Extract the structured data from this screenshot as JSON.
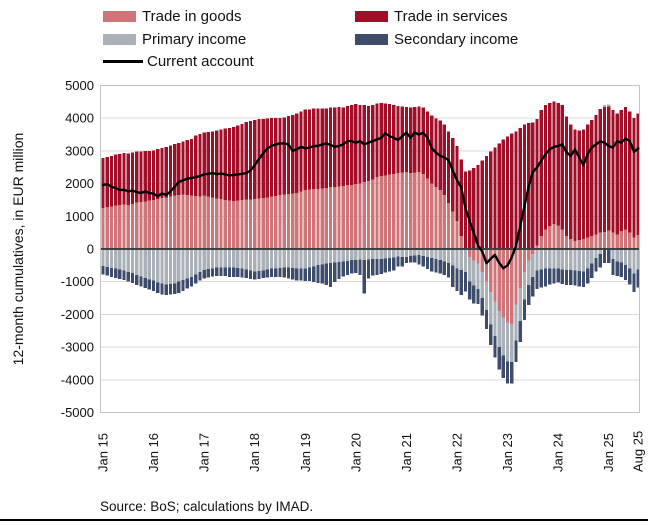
{
  "legend": {
    "items": [
      {
        "label": "Trade in goods",
        "color": "#cf757a",
        "swatch": "box"
      },
      {
        "label": "Trade in services",
        "color": "#a00e28",
        "swatch": "box"
      },
      {
        "label": "Primary income",
        "color": "#aab0b8",
        "swatch": "box"
      },
      {
        "label": "Secondary income",
        "color": "#3e4c6b",
        "swatch": "box"
      },
      {
        "label": "Current account",
        "color": "#000000",
        "swatch": "line"
      }
    ]
  },
  "y_axis": {
    "title": "12-month cumulatives, in EUR million",
    "tick_values": [
      5000,
      4000,
      3000,
      2000,
      1000,
      0,
      -1000,
      -2000,
      -3000,
      -4000,
      -5000
    ]
  },
  "x_axis": {
    "ticks": [
      {
        "label": "Jan 15",
        "month": 0
      },
      {
        "label": "Jan 16",
        "month": 12
      },
      {
        "label": "Jan 17",
        "month": 24
      },
      {
        "label": "Jan 18",
        "month": 36
      },
      {
        "label": "Jan 19",
        "month": 48
      },
      {
        "label": "Jan 20",
        "month": 60
      },
      {
        "label": "Jan 21",
        "month": 72
      },
      {
        "label": "Jan 22",
        "month": 84
      },
      {
        "label": "Jan 23",
        "month": 96
      },
      {
        "label": "Jan 24",
        "month": 108
      },
      {
        "label": "Jan 25",
        "month": 120
      },
      {
        "label": "Aug 25",
        "month": 127
      }
    ]
  },
  "source_note": "Source: BoS; calculations by IMAD.",
  "chart_data": {
    "type": "bar",
    "stacked": true,
    "frequency": "monthly",
    "x_start": "Jan 2015",
    "x_end": "Aug 2025",
    "ylabel": "12-month cumulatives, in EUR million",
    "unit": "EUR million",
    "ylim": [
      -5000,
      5000
    ],
    "grid": true,
    "gridline_color": "#d9d9d9",
    "zero_line_color": "#404040",
    "frame_color": "#c4c4c4",
    "legend_position": "top",
    "series": [
      {
        "name": "Trade in goods",
        "type": "bar",
        "color": "#cf757a",
        "values": [
          1250,
          1280,
          1300,
          1330,
          1340,
          1360,
          1350,
          1380,
          1420,
          1430,
          1460,
          1480,
          1500,
          1530,
          1560,
          1580,
          1610,
          1640,
          1650,
          1660,
          1650,
          1630,
          1620,
          1610,
          1640,
          1600,
          1570,
          1550,
          1530,
          1500,
          1480,
          1475,
          1480,
          1500,
          1510,
          1520,
          1525,
          1540,
          1560,
          1580,
          1600,
          1620,
          1650,
          1660,
          1680,
          1700,
          1720,
          1760,
          1800,
          1820,
          1840,
          1830,
          1850,
          1870,
          1900,
          1890,
          1910,
          1930,
          1950,
          1960,
          1990,
          2010,
          2050,
          2080,
          2120,
          2200,
          2230,
          2250,
          2280,
          2300,
          2320,
          2340,
          2350,
          2330,
          2340,
          2350,
          2300,
          2150,
          2000,
          1890,
          1800,
          1650,
          1400,
          1150,
          850,
          400,
          0,
          -250,
          -350,
          -450,
          -700,
          -1000,
          -1310,
          -1600,
          -1900,
          -2100,
          -2250,
          -2300,
          -1700,
          -1200,
          -700,
          -350,
          -150,
          100,
          400,
          600,
          700,
          760,
          720,
          600,
          400,
          300,
          250,
          280,
          300,
          350,
          400,
          450,
          500,
          520,
          560,
          500,
          450,
          550,
          600,
          500,
          350,
          430
        ]
      },
      {
        "name": "Trade in services",
        "type": "bar",
        "color": "#a00e28",
        "values": [
          1530,
          1540,
          1550,
          1555,
          1560,
          1570,
          1570,
          1565,
          1560,
          1550,
          1535,
          1520,
          1520,
          1525,
          1535,
          1545,
          1560,
          1575,
          1590,
          1620,
          1680,
          1740,
          1850,
          1900,
          1930,
          1980,
          2030,
          2080,
          2130,
          2180,
          2215,
          2250,
          2290,
          2330,
          2370,
          2400,
          2425,
          2430,
          2420,
          2410,
          2400,
          2380,
          2350,
          2360,
          2380,
          2400,
          2420,
          2440,
          2460,
          2450,
          2460,
          2470,
          2450,
          2430,
          2420,
          2430,
          2440,
          2400,
          2420,
          2450,
          2440,
          2400,
          2350,
          2300,
          2280,
          2250,
          2230,
          2200,
          2150,
          2100,
          2060,
          2020,
          2000,
          1990,
          2000,
          2010,
          2030,
          2050,
          2080,
          2100,
          2130,
          2160,
          2200,
          2250,
          2300,
          2330,
          2370,
          2400,
          2480,
          2570,
          2700,
          2850,
          2980,
          3100,
          3230,
          3350,
          3440,
          3530,
          3600,
          3700,
          3800,
          3850,
          3870,
          3880,
          3850,
          3800,
          3770,
          3750,
          3750,
          3800,
          3650,
          3500,
          3400,
          3350,
          3350,
          3450,
          3550,
          3650,
          3780,
          3820,
          3800,
          3750,
          3700,
          3700,
          3750,
          3700,
          3650,
          3720
        ]
      },
      {
        "name": "Primary income",
        "type": "bar",
        "color": "#aab0b8",
        "values": [
          -520,
          -550,
          -580,
          -600,
          -630,
          -660,
          -700,
          -740,
          -790,
          -840,
          -890,
          -930,
          -960,
          -1020,
          -1060,
          -1080,
          -1070,
          -1050,
          -1000,
          -950,
          -900,
          -850,
          -780,
          -700,
          -640,
          -610,
          -590,
          -570,
          -560,
          -560,
          -560,
          -570,
          -580,
          -600,
          -630,
          -660,
          -690,
          -670,
          -650,
          -620,
          -600,
          -590,
          -580,
          -565,
          -570,
          -580,
          -590,
          -590,
          -590,
          -560,
          -530,
          -490,
          -470,
          -450,
          -435,
          -410,
          -395,
          -385,
          -360,
          -340,
          -330,
          -320,
          -330,
          -320,
          -310,
          -310,
          -300,
          -290,
          -280,
          -260,
          -230,
          -240,
          -250,
          -220,
          -200,
          -190,
          -210,
          -240,
          -280,
          -300,
          -330,
          -380,
          -430,
          -500,
          -590,
          -640,
          -700,
          -740,
          -760,
          -775,
          -800,
          -870,
          -1000,
          -1060,
          -1100,
          -1150,
          -1185,
          -1150,
          -1100,
          -1000,
          -850,
          -750,
          -700,
          -650,
          -620,
          -600,
          -590,
          -590,
          -590,
          -620,
          -640,
          -640,
          -660,
          -680,
          -690,
          -600,
          -450,
          -280,
          -150,
          60,
          60,
          -310,
          -380,
          -420,
          -485,
          -600,
          -750,
          -620
        ]
      },
      {
        "name": "Secondary income",
        "type": "bar",
        "color": "#3e4c6b",
        "values": [
          -260,
          -265,
          -270,
          -280,
          -285,
          -290,
          -295,
          -300,
          -310,
          -310,
          -310,
          -310,
          -320,
          -330,
          -330,
          -330,
          -325,
          -330,
          -340,
          -330,
          -310,
          -300,
          -280,
          -270,
          -260,
          -255,
          -250,
          -250,
          -260,
          -270,
          -290,
          -280,
          -270,
          -265,
          -260,
          -255,
          -250,
          -245,
          -240,
          -250,
          -260,
          -270,
          -280,
          -310,
          -330,
          -350,
          -370,
          -380,
          -390,
          -420,
          -480,
          -545,
          -580,
          -650,
          -720,
          -600,
          -520,
          -460,
          -430,
          -410,
          -410,
          -480,
          -1030,
          -580,
          -500,
          -485,
          -470,
          -430,
          -410,
          -400,
          -305,
          -290,
          -185,
          -200,
          -220,
          -280,
          -330,
          -370,
          -410,
          -420,
          -420,
          -410,
          -440,
          -655,
          -700,
          -770,
          -600,
          -560,
          -550,
          -460,
          -540,
          -580,
          -630,
          -660,
          -680,
          -700,
          -680,
          -670,
          -650,
          -640,
          -620,
          -610,
          -600,
          -580,
          -560,
          -540,
          -500,
          -460,
          -440,
          -450,
          -460,
          -460,
          -460,
          -465,
          -465,
          -450,
          -430,
          -410,
          -420,
          -430,
          -430,
          -480,
          -450,
          -440,
          -465,
          -480,
          -560,
          -550
        ]
      },
      {
        "name": "Current account",
        "type": "line",
        "color": "#000000",
        "values": [
          1950,
          1990,
          1900,
          1870,
          1800,
          1810,
          1760,
          1790,
          1740,
          1710,
          1760,
          1710,
          1690,
          1610,
          1700,
          1650,
          1760,
          1900,
          2050,
          2100,
          2150,
          2170,
          2200,
          2230,
          2280,
          2300,
          2320,
          2290,
          2310,
          2280,
          2250,
          2260,
          2280,
          2300,
          2320,
          2400,
          2560,
          2750,
          2920,
          3075,
          3150,
          3200,
          3230,
          3230,
          3200,
          3000,
          3050,
          3125,
          3075,
          3100,
          3150,
          3150,
          3200,
          3230,
          3180,
          3125,
          3150,
          3200,
          3300,
          3300,
          3250,
          3300,
          3200,
          3250,
          3300,
          3350,
          3400,
          3540,
          3450,
          3400,
          3330,
          3450,
          3560,
          3400,
          3560,
          3500,
          3560,
          3400,
          3090,
          2950,
          2850,
          2800,
          2715,
          2400,
          2100,
          1890,
          1250,
          870,
          500,
          100,
          -80,
          -435,
          -300,
          -180,
          -420,
          -590,
          -500,
          -250,
          100,
          700,
          1300,
          1900,
          2350,
          2500,
          2700,
          2900,
          3050,
          3125,
          3150,
          3200,
          2950,
          2850,
          3050,
          2800,
          2560,
          2900,
          3100,
          3200,
          3290,
          3250,
          3150,
          3100,
          3300,
          3250,
          3380,
          3300,
          2970,
          3075
        ]
      }
    ]
  }
}
